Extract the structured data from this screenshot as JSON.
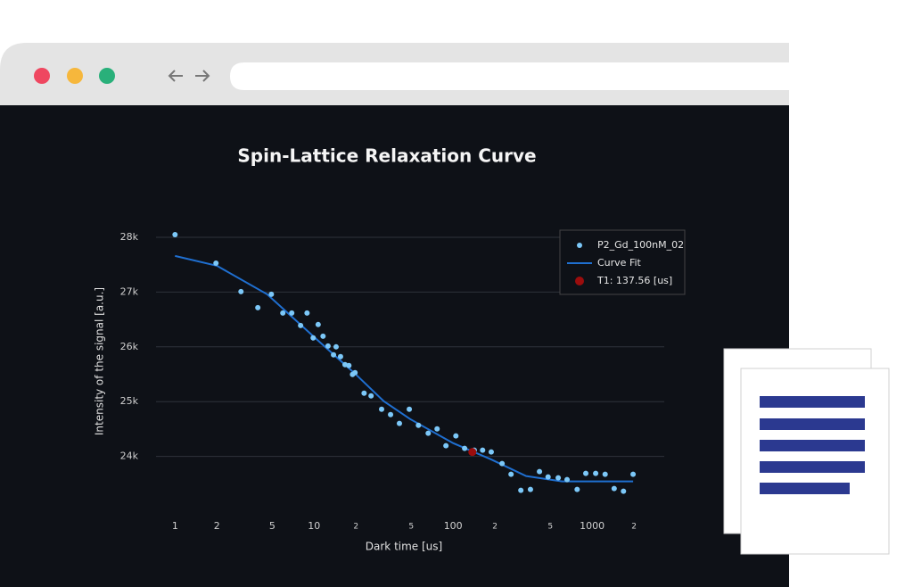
{
  "chart_data": {
    "type": "scatter",
    "title": "Spin-Lattice Relaxation Curve",
    "xlabel": "Dark time [us]",
    "ylabel": "Intensity of the signal [a.u.]",
    "xscale": "log",
    "xlim": [
      0.73,
      3300
    ],
    "xticks": [
      1,
      2,
      5,
      10,
      {
        "value": 20,
        "label": "2"
      },
      {
        "value": 50,
        "label": "5"
      },
      100,
      {
        "value": 200,
        "label": "2"
      },
      {
        "value": 500,
        "label": "5"
      },
      1000,
      {
        "value": 2000,
        "label": "2"
      }
    ],
    "ylim": [
      23050,
      28260
    ],
    "yticks": [
      {
        "value": 24000,
        "label": "24k"
      },
      {
        "value": 25000,
        "label": "25k"
      },
      {
        "value": 26000,
        "label": "26k"
      },
      {
        "value": 27000,
        "label": "27k"
      },
      {
        "value": 28000,
        "label": "28k"
      }
    ],
    "grid": true,
    "legend": "upper right",
    "series": [
      {
        "name": "P2_Gd_100nM_02",
        "type": "scatter",
        "color": "#7cc8f8",
        "x": [
          1,
          1.97,
          2.98,
          3.94,
          4.93,
          5.96,
          6.91,
          8.0,
          8.9,
          9.85,
          10.7,
          11.6,
          12.6,
          13.8,
          14.4,
          15.5,
          16.7,
          17.8,
          18.9,
          19.7,
          22.9,
          25.7,
          30.6,
          35.5,
          41.1,
          48.4,
          56.3,
          66.2,
          76.7,
          88.8,
          104.7,
          121,
          142,
          163,
          188,
          225,
          261,
          307,
          360,
          418,
          482,
          570,
          660,
          780,
          900,
          1060,
          1240,
          1440,
          1680,
          1970
        ],
        "values": [
          28049,
          27528,
          27008,
          26715,
          26959,
          26618,
          26618,
          26390,
          26618,
          26163,
          26407,
          26195,
          26016,
          25854,
          26000,
          25821,
          25675,
          25659,
          25496,
          25528,
          25154,
          25106,
          24862,
          24764,
          24602,
          24862,
          24569,
          24423,
          24504,
          24195,
          24374,
          24146,
          24114,
          24114,
          24081,
          23870,
          23675,
          23382,
          23398,
          23724,
          23626,
          23610,
          23577,
          23398,
          23691,
          23691,
          23675,
          23415,
          23366,
          23675
        ]
      },
      {
        "name": "Curve Fit",
        "type": "line",
        "color": "#1f6fd0",
        "x": [
          1,
          2,
          4.6,
          10,
          20,
          31.7,
          49,
          100,
          186,
          335,
          607,
          1090,
          1970
        ],
        "values": [
          27659,
          27480,
          26959,
          26179,
          25496,
          25008,
          24683,
          24244,
          23951,
          23642,
          23545,
          23545,
          23545
        ]
      },
      {
        "name": "T1: 137.56 [us]",
        "type": "scatter",
        "color": "#9b0d0d",
        "x": [
          137.56
        ],
        "values": [
          24081
        ]
      }
    ]
  }
}
